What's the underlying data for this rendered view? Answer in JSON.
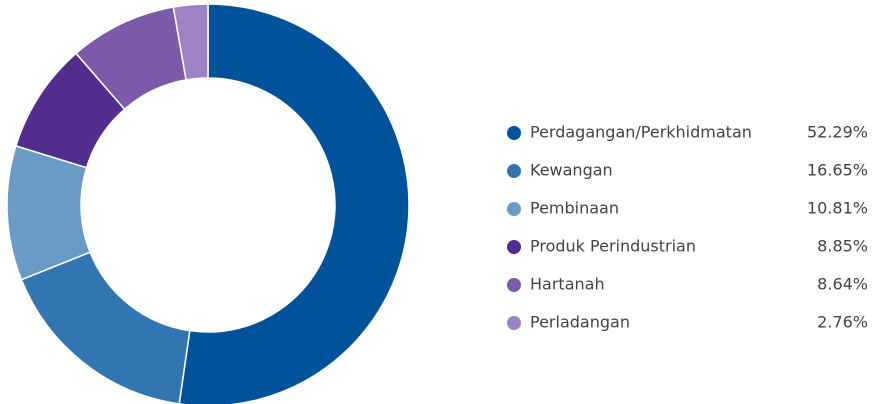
{
  "chart_data": {
    "type": "donut",
    "categories": [
      "Perdagangan/Perkhidmatan",
      "Kewangan",
      "Pembinaan",
      "Produk Perindustrian",
      "Hartanah",
      "Perladangan"
    ],
    "values": [
      52.29,
      16.65,
      10.81,
      8.85,
      8.64,
      2.76
    ],
    "value_labels": [
      "52.29%",
      "16.65%",
      "10.81%",
      "8.85%",
      "8.64%",
      "2.76%"
    ],
    "colors": [
      "#00539b",
      "#3276b1",
      "#6a9bc6",
      "#532d8e",
      "#7b5aa9",
      "#9c84c4"
    ],
    "legend": "right"
  }
}
